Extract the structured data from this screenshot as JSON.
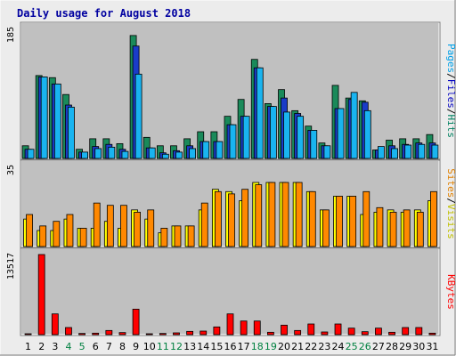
{
  "chart_data": {
    "type": "bar",
    "title": "Daily usage for August 2018",
    "categories": [
      "1",
      "2",
      "3",
      "4",
      "5",
      "6",
      "7",
      "8",
      "9",
      "10",
      "11",
      "12",
      "13",
      "14",
      "15",
      "16",
      "17",
      "18",
      "19",
      "20",
      "21",
      "22",
      "23",
      "24",
      "25",
      "26",
      "27",
      "28",
      "29",
      "30",
      "31"
    ],
    "weekend_days": [
      "4",
      "5",
      "11",
      "12",
      "18",
      "19",
      "25",
      "26"
    ],
    "panels": [
      {
        "id": "top",
        "max_label": "185",
        "ylim": [
          0,
          185
        ],
        "series": [
          {
            "name": "Hits",
            "color": "#1a8a5a",
            "values": [
              18,
              118,
              115,
              91,
              13,
              28,
              28,
              21,
              175,
              30,
              18,
              18,
              28,
              38,
              38,
              60,
              84,
              141,
              78,
              98,
              68,
              46,
              22,
              104,
              86,
              82,
              12,
              26,
              28,
              28,
              34
            ]
          },
          {
            "name": "Files",
            "color": "#1a3cc8",
            "values": [
              13,
              116,
              106,
              76,
              9,
              17,
              20,
              13,
              160,
              15,
              8,
              11,
              18,
              24,
              24,
              48,
              60,
              129,
              74,
              86,
              64,
              40,
              18,
              71,
              84,
              80,
              12,
              18,
              20,
              22,
              22
            ]
          },
          {
            "name": "Pages",
            "color": "#19b4f0",
            "values": [
              13,
              116,
              106,
              73,
              9,
              14,
              16,
              10,
              120,
              15,
              6,
              9,
              14,
              24,
              24,
              48,
              60,
              129,
              74,
              66,
              60,
              40,
              18,
              71,
              94,
              68,
              17,
              14,
              19,
              20,
              19
            ]
          }
        ],
        "legend": [
          "Pages",
          "Files",
          "Hits"
        ]
      },
      {
        "id": "middle",
        "max_label": "35",
        "ylim": [
          0,
          35
        ],
        "series": [
          {
            "name": "Visits",
            "color": "#ffff00",
            "values": [
              12,
              7,
              7,
              12,
              8,
              8,
              11,
              8,
              16,
              12,
              6,
              9,
              9,
              16,
              25,
              24,
              20,
              28,
              28,
              28,
              28,
              24,
              16,
              22,
              22,
              14,
              15,
              16,
              15,
              16,
              20
            ]
          },
          {
            "name": "Sites",
            "color": "#ff8800",
            "values": [
              14,
              9,
              11,
              14,
              8,
              19,
              18,
              18,
              15,
              16,
              8,
              9,
              9,
              19,
              24,
              23,
              25,
              27,
              28,
              28,
              28,
              24,
              16,
              22,
              22,
              24,
              17,
              15,
              16,
              15,
              24
            ]
          }
        ],
        "legend": [
          "Sites",
          "Visits"
        ]
      },
      {
        "id": "bottom",
        "max_label": "13517",
        "ylim": [
          0,
          13517
        ],
        "series": [
          {
            "name": "KBytes",
            "color": "#ff0000",
            "values": [
              150,
              13517,
              3500,
              1200,
              200,
              250,
              700,
              350,
              4300,
              150,
              200,
              300,
              550,
              600,
              1300,
              3500,
              2300,
              2300,
              400,
              1600,
              700,
              1800,
              450,
              1800,
              1100,
              500,
              1100,
              400,
              1200,
              1200,
              250
            ]
          }
        ],
        "legend": [
          "KBytes"
        ]
      }
    ],
    "legend_separator": "/",
    "legend_colors": {
      "Pages": "#00a0e8",
      "Files": "#0000c0",
      "Hits": "#008060",
      "Sites": "#e08000",
      "Visits": "#c0c000",
      "KBytes": "#ff0000"
    },
    "colors": {
      "background": "#ececec",
      "plot_background": "#c0c0c0",
      "title": "#0000a0",
      "weekday_label": "#000000",
      "weekend_label": "#008040"
    }
  }
}
